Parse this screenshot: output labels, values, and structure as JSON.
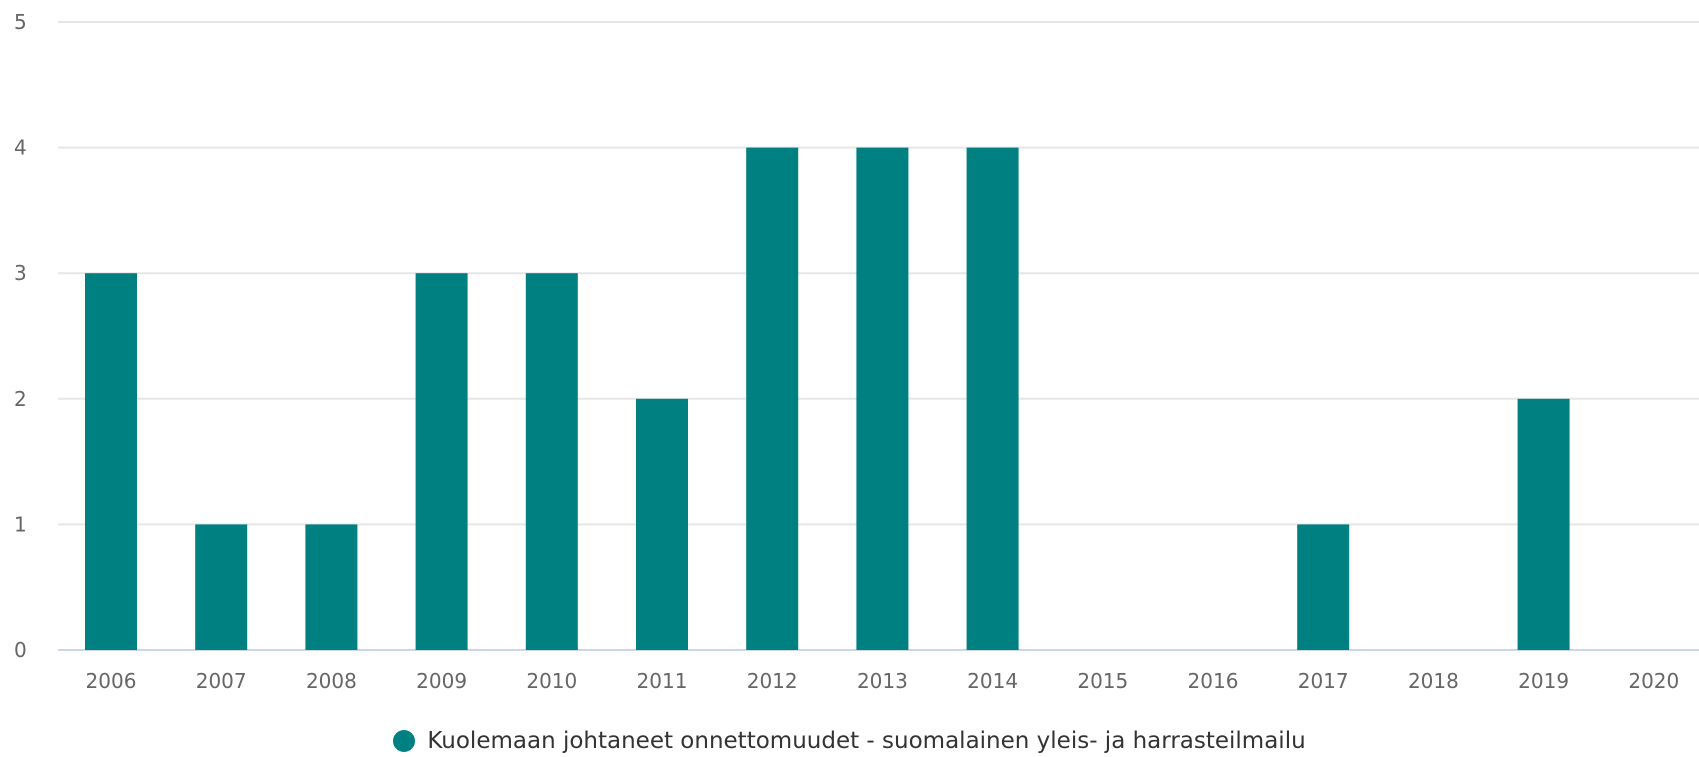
{
  "colors": {
    "bar": "#008080"
  },
  "chart_data": {
    "type": "bar",
    "categories": [
      "2006",
      "2007",
      "2008",
      "2009",
      "2010",
      "2011",
      "2012",
      "2013",
      "2014",
      "2015",
      "2016",
      "2017",
      "2018",
      "2019",
      "2020"
    ],
    "series": [
      {
        "name": "Kuolemaan johtaneet onnettomuudet - suomalainen yleis- ja harrasteilmailu",
        "values": [
          3,
          1,
          1,
          3,
          3,
          2,
          4,
          4,
          4,
          0,
          0,
          1,
          0,
          2,
          0
        ]
      }
    ],
    "yticks": [
      "0",
      "1",
      "2",
      "3",
      "4",
      "5"
    ],
    "ylim": [
      0,
      5
    ],
    "grid": true,
    "legend": "bottom-center"
  }
}
